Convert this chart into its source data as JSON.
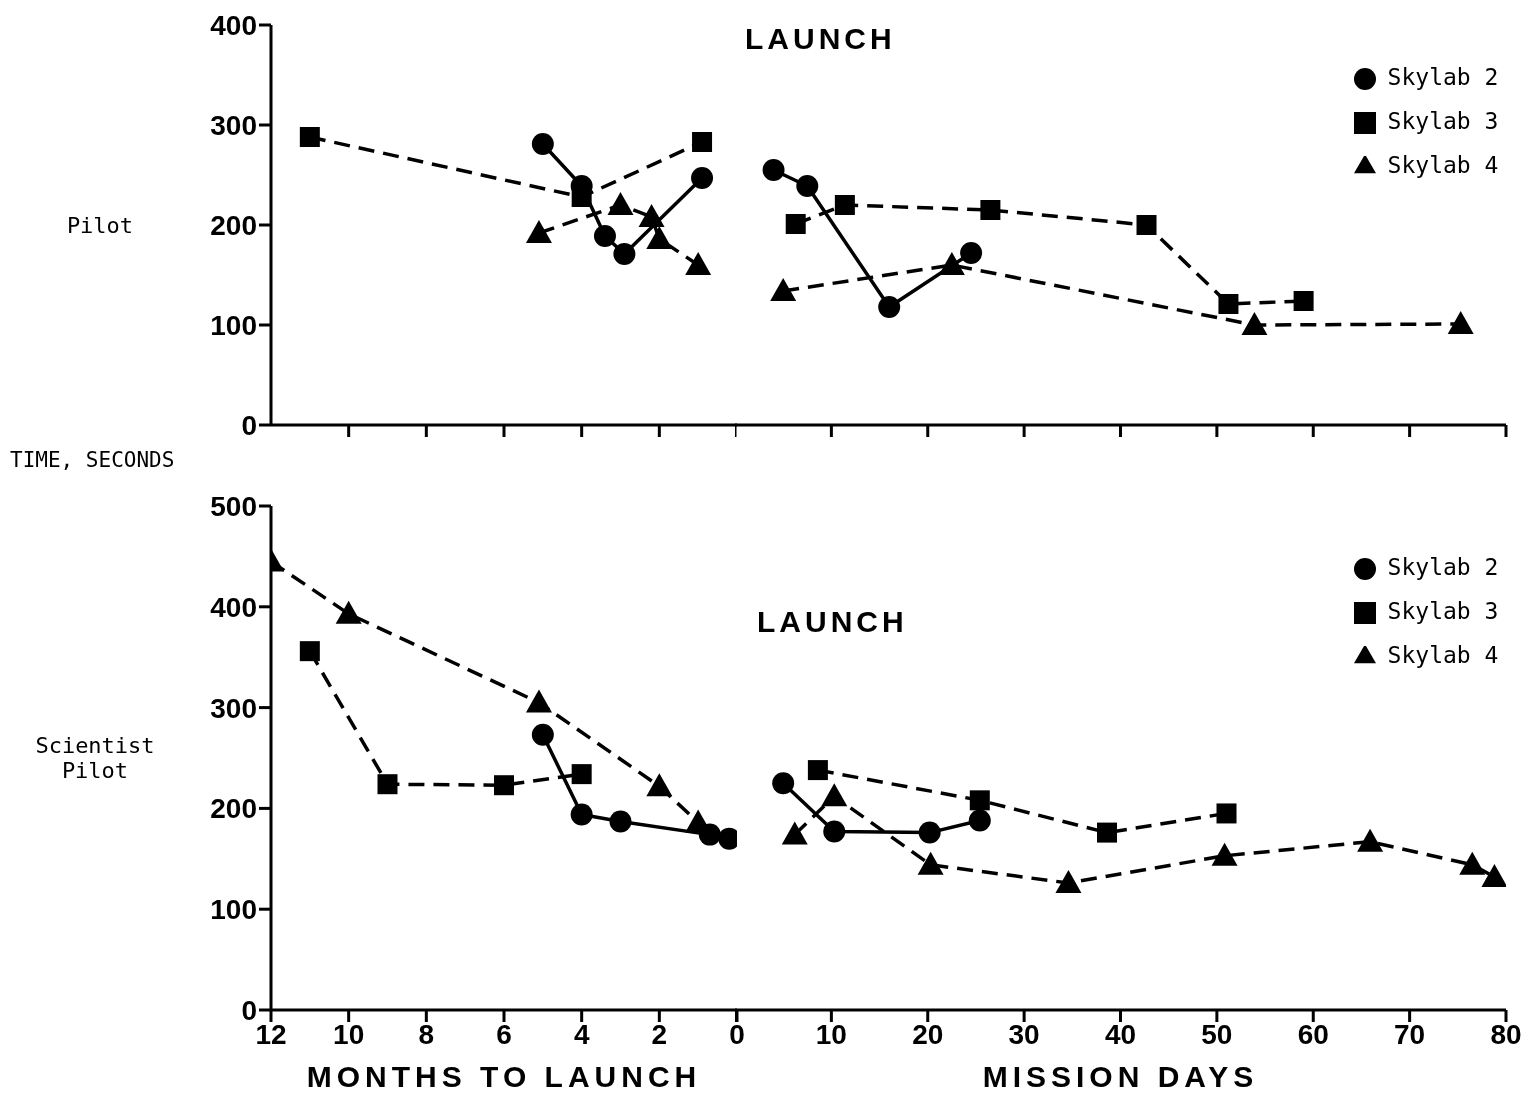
{
  "chart_data": [
    {
      "type": "line",
      "ylabel": "Pilot",
      "annotations": [
        "TIME, SECONDS"
      ],
      "xlim": [
        12,
        0
      ],
      "xticks": [
        {
          "value": 10,
          "label": null
        },
        {
          "value": 8,
          "label": null
        },
        {
          "value": 6,
          "label": null
        },
        {
          "value": 4,
          "label": null
        },
        {
          "value": 2,
          "label": null
        }
      ],
      "ylim": [
        0,
        400
      ],
      "yticks": [
        0,
        100,
        200,
        300,
        400
      ],
      "tick_labels": "y",
      "legend": false,
      "series": [
        {
          "color": "#000000",
          "marker": "circle",
          "line_style": "solid",
          "x": [
            5,
            4,
            3.4,
            2.9,
            0.9
          ],
          "values": [
            281,
            239,
            189,
            171,
            247
          ]
        },
        {
          "color": "#000000",
          "marker": "square",
          "line_style": "dashed",
          "x": [
            11,
            4,
            0.9
          ],
          "values": [
            288,
            228,
            283
          ]
        },
        {
          "color": "#000000",
          "marker": "triangle",
          "line_style": "dashed",
          "x": [
            5.1,
            3,
            2.2,
            2,
            1
          ],
          "values": [
            192,
            220,
            208,
            186,
            160
          ]
        }
      ]
    },
    {
      "type": "line",
      "annotations": [
        "LAUNCH"
      ],
      "xlim": [
        0,
        80
      ],
      "xticks": [
        {
          "value": 0,
          "label": null
        },
        {
          "value": 10,
          "label": null
        },
        {
          "value": 20,
          "label": null
        },
        {
          "value": 30,
          "label": null
        },
        {
          "value": 40,
          "label": null
        },
        {
          "value": 50,
          "label": null
        },
        {
          "value": 60,
          "label": null
        },
        {
          "value": 70,
          "label": null
        },
        {
          "value": 80,
          "label": null
        }
      ],
      "ylim": [
        0,
        400
      ],
      "tick_labels": false,
      "legend": "top right",
      "series": [
        {
          "name": "Skylab 2",
          "color": "#000000",
          "marker": "circle",
          "line_style": "solid",
          "x": [
            4,
            7.5,
            16,
            24.5
          ],
          "values": [
            255,
            239,
            118,
            172
          ]
        },
        {
          "name": "Skylab 3",
          "color": "#000000",
          "marker": "square",
          "line_style": "dashed",
          "x": [
            6.3,
            11.4,
            26.5,
            42.7,
            51.2,
            59
          ],
          "values": [
            201,
            220,
            215,
            200,
            121,
            124
          ]
        },
        {
          "name": "Skylab 4",
          "color": "#000000",
          "marker": "triangle",
          "line_style": "dashed",
          "x": [
            5,
            22.5,
            53.9,
            75.3
          ],
          "values": [
            134,
            160,
            100,
            101
          ]
        }
      ]
    },
    {
      "type": "line",
      "ylabel": "Scientist Pilot",
      "xlabel": "MONTHS TO LAUNCH",
      "xlim": [
        12,
        0
      ],
      "xticks": [
        12,
        10,
        8,
        6,
        4,
        2,
        0
      ],
      "ylim": [
        0,
        500
      ],
      "yticks": [
        0,
        100,
        200,
        300,
        400,
        500
      ],
      "legend": false,
      "series": [
        {
          "color": "#000000",
          "marker": "circle",
          "line_style": "solid",
          "x": [
            5,
            4,
            3,
            0.7,
            0.2
          ],
          "values": [
            273,
            194,
            187,
            174,
            170
          ]
        },
        {
          "color": "#000000",
          "marker": "square",
          "line_style": "dashed",
          "x": [
            11,
            9,
            6,
            4
          ],
          "values": [
            356,
            224,
            223,
            234
          ]
        },
        {
          "color": "#000000",
          "marker": "triangle",
          "line_style": "dashed",
          "x": [
            12,
            10,
            5.1,
            2,
            1
          ],
          "values": [
            445,
            393,
            305,
            222,
            186
          ]
        }
      ]
    },
    {
      "type": "line",
      "xlabel": "MISSION DAYS",
      "annotations": [
        "LAUNCH"
      ],
      "xlim": [
        0,
        80
      ],
      "xticks": [
        {
          "value": 0,
          "label": null
        },
        10,
        20,
        30,
        40,
        50,
        60,
        70,
        80
      ],
      "ylim": [
        0,
        500
      ],
      "tick_labels": "x",
      "legend": "top right",
      "series": [
        {
          "name": "Skylab 2",
          "color": "#000000",
          "marker": "circle",
          "line_style": "solid",
          "x": [
            5,
            10.3,
            20.2,
            25.4
          ],
          "values": [
            225,
            177,
            176,
            188
          ]
        },
        {
          "name": "Skylab 3",
          "color": "#000000",
          "marker": "square",
          "line_style": "dashed",
          "x": [
            8.6,
            25.4,
            38.6,
            51
          ],
          "values": [
            238,
            208,
            176,
            195
          ]
        },
        {
          "name": "Skylab 4",
          "color": "#000000",
          "marker": "triangle",
          "line_style": "dashed",
          "x": [
            6.2,
            10.3,
            20.3,
            34.6,
            50.8,
            65.9,
            76.5,
            78.8
          ],
          "values": [
            174,
            212,
            144,
            126,
            153,
            167,
            144,
            132
          ]
        }
      ]
    }
  ]
}
